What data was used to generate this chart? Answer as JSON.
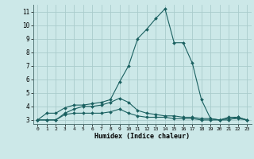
{
  "xlabel": "Humidex (Indice chaleur)",
  "ylabel": "",
  "bg_color": "#cce8e8",
  "grid_color": "#aacccc",
  "line_color": "#1a6060",
  "xlim": [
    -0.5,
    23.5
  ],
  "ylim": [
    2.7,
    11.5
  ],
  "xticks": [
    0,
    1,
    2,
    3,
    4,
    5,
    6,
    7,
    8,
    9,
    10,
    11,
    12,
    13,
    14,
    15,
    16,
    17,
    18,
    19,
    20,
    21,
    22,
    23
  ],
  "yticks": [
    3,
    4,
    5,
    6,
    7,
    8,
    9,
    10,
    11
  ],
  "series": [
    {
      "x": [
        0,
        1,
        2,
        3,
        4,
        5,
        6,
        7,
        8,
        9,
        10,
        11,
        12,
        13,
        14,
        15,
        16,
        17,
        18,
        19,
        20,
        21,
        22,
        23
      ],
      "y": [
        3.0,
        3.5,
        3.5,
        3.9,
        4.1,
        4.1,
        4.2,
        4.3,
        4.5,
        5.8,
        7.0,
        9.0,
        9.7,
        10.5,
        11.2,
        8.7,
        8.7,
        7.2,
        4.5,
        3.1,
        3.0,
        3.0,
        3.2,
        3.0
      ]
    },
    {
      "x": [
        0,
        1,
        2,
        3,
        4,
        5,
        6,
        7,
        8,
        9,
        10,
        11,
        12,
        13,
        14,
        15,
        16,
        17,
        18,
        19,
        20,
        21,
        22,
        23
      ],
      "y": [
        3.0,
        3.0,
        3.0,
        3.5,
        3.8,
        4.0,
        4.0,
        4.1,
        4.3,
        4.6,
        4.3,
        3.7,
        3.5,
        3.4,
        3.3,
        3.3,
        3.2,
        3.2,
        3.1,
        3.1,
        3.0,
        3.2,
        3.2,
        3.0
      ]
    },
    {
      "x": [
        0,
        1,
        2,
        3,
        4,
        5,
        6,
        7,
        8,
        9,
        10,
        11,
        12,
        13,
        14,
        15,
        16,
        17,
        18,
        19,
        20,
        21,
        22,
        23
      ],
      "y": [
        3.0,
        3.0,
        3.0,
        3.4,
        3.5,
        3.5,
        3.5,
        3.5,
        3.6,
        3.8,
        3.5,
        3.3,
        3.2,
        3.2,
        3.2,
        3.1,
        3.1,
        3.1,
        3.0,
        3.0,
        3.0,
        3.1,
        3.1,
        3.0
      ]
    }
  ]
}
